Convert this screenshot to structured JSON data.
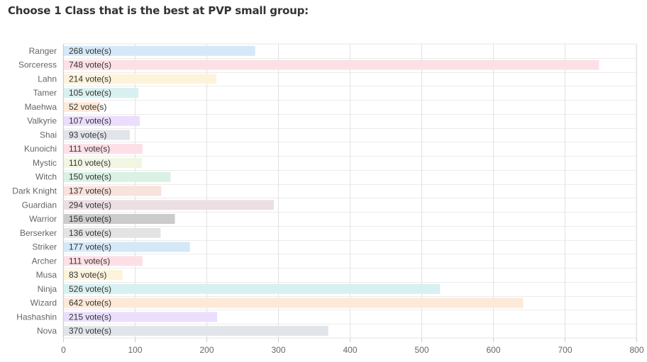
{
  "page": {
    "question": "Choose 1 Class that is the best at PVP small group:"
  },
  "chart_data": {
    "type": "bar",
    "orientation": "horizontal",
    "title": "Choose 1 Class that is the best at PVP small group:",
    "xlabel": "",
    "ylabel": "",
    "xlim": [
      0,
      800
    ],
    "xticks": [
      0,
      100,
      200,
      300,
      400,
      500,
      600,
      700,
      800
    ],
    "grid": true,
    "value_suffix": " vote(s)",
    "categories": [
      "Ranger",
      "Sorceress",
      "Lahn",
      "Tamer",
      "Maehwa",
      "Valkyrie",
      "Shai",
      "Kunoichi",
      "Mystic",
      "Witch",
      "Dark Knight",
      "Guardian",
      "Warrior",
      "Berserker",
      "Striker",
      "Archer",
      "Musa",
      "Ninja",
      "Wizard",
      "Hashashin",
      "Nova"
    ],
    "values": [
      268,
      748,
      214,
      105,
      52,
      107,
      93,
      111,
      110,
      150,
      137,
      294,
      156,
      136,
      177,
      111,
      83,
      526,
      642,
      215,
      370
    ],
    "colors": [
      "#d5e8f8",
      "#fde0e6",
      "#fdf3dc",
      "#d9f0f0",
      "#fde9d8",
      "#ebdefd",
      "#e1e5ea",
      "#fde0e6",
      "#f1f6e3",
      "#daf1e4",
      "#f9e1dc",
      "#ecdfe4",
      "#cbcbcb",
      "#e3e3e3",
      "#d5e8f8",
      "#fde0e6",
      "#fdf3dc",
      "#d9f0f0",
      "#fde9d8",
      "#ebdefd",
      "#e1e5ea"
    ]
  }
}
